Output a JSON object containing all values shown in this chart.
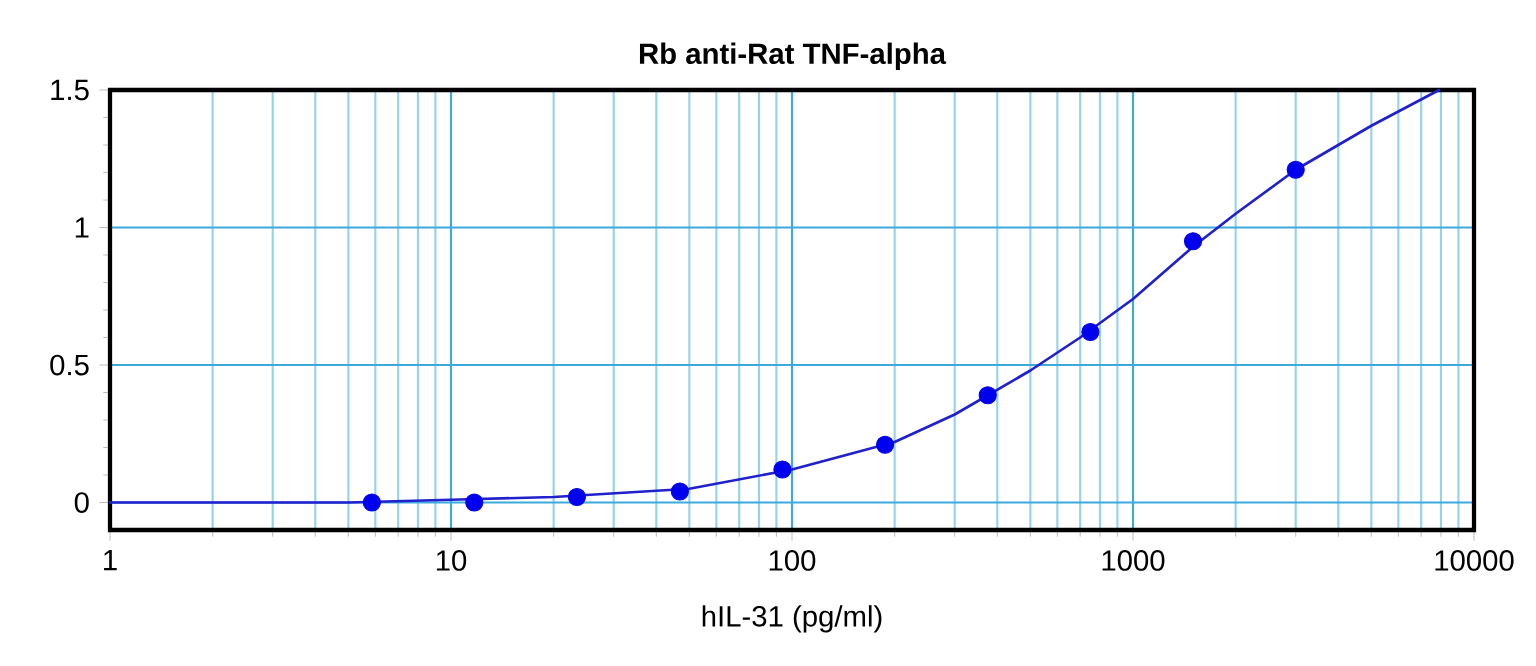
{
  "chart_data": {
    "type": "scatter",
    "title": "Rb anti-Rat TNF-alpha",
    "xlabel": "hIL-31 (pg/ml)",
    "log": "x",
    "grid": true,
    "xlim": [
      1,
      10000
    ],
    "ylim": [
      -0.1,
      1.5
    ],
    "xticks": [
      1,
      {
        "value": 2,
        "label": null
      },
      {
        "value": 3,
        "label": null
      },
      {
        "value": 4,
        "label": null
      },
      {
        "value": 5,
        "label": null
      },
      {
        "value": 6,
        "label": null
      },
      {
        "value": 7,
        "label": null
      },
      {
        "value": 8,
        "label": null
      },
      {
        "value": 9,
        "label": null
      },
      10,
      {
        "value": 20,
        "label": null
      },
      {
        "value": 30,
        "label": null
      },
      {
        "value": 40,
        "label": null
      },
      {
        "value": 50,
        "label": null
      },
      {
        "value": 60,
        "label": null
      },
      {
        "value": 70,
        "label": null
      },
      {
        "value": 80,
        "label": null
      },
      {
        "value": 90,
        "label": null
      },
      100,
      {
        "value": 200,
        "label": null
      },
      {
        "value": 300,
        "label": null
      },
      {
        "value": 400,
        "label": null
      },
      {
        "value": 500,
        "label": null
      },
      {
        "value": 600,
        "label": null
      },
      {
        "value": 700,
        "label": null
      },
      {
        "value": 800,
        "label": null
      },
      {
        "value": 900,
        "label": null
      },
      1000,
      {
        "value": 2000,
        "label": null
      },
      {
        "value": 3000,
        "label": null
      },
      {
        "value": 4000,
        "label": null
      },
      {
        "value": 5000,
        "label": null
      },
      {
        "value": 6000,
        "label": null
      },
      {
        "value": 7000,
        "label": null
      },
      {
        "value": 8000,
        "label": null
      },
      {
        "value": 9000,
        "label": null
      },
      10000
    ],
    "yticks": [
      0,
      0.5,
      1,
      1.5
    ],
    "series": [
      {
        "type": "line",
        "color": "#2020cc",
        "marker": "none",
        "x": [
          1,
          5,
          10,
          20,
          50,
          100,
          200,
          300,
          500,
          700,
          1000,
          1500,
          2000,
          3000,
          5000,
          7900
        ],
        "values": [
          0,
          0,
          0.01,
          0.02,
          0.05,
          0.12,
          0.22,
          0.32,
          0.48,
          0.6,
          0.74,
          0.93,
          1.05,
          1.21,
          1.37,
          1.5
        ]
      },
      {
        "color": "#0000ee",
        "marker": "circle",
        "x": [
          5.86,
          11.7,
          23.4,
          46.9,
          93.75,
          187.5,
          375,
          750,
          1500,
          3000
        ],
        "values": [
          0,
          0,
          0.02,
          0.04,
          0.12,
          0.21,
          0.39,
          0.62,
          0.95,
          1.21
        ]
      }
    ]
  }
}
